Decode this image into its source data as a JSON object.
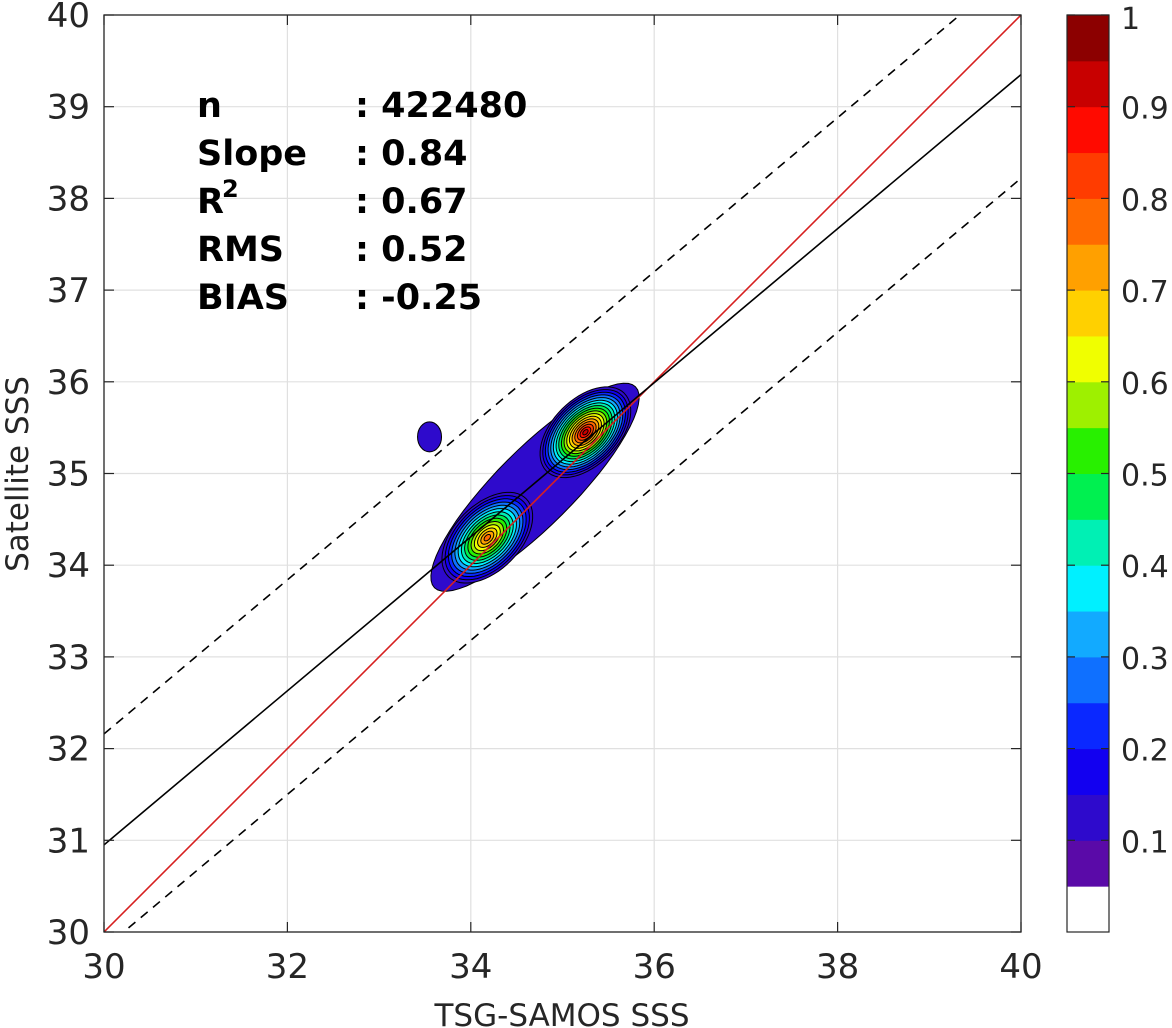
{
  "chart_data": {
    "type": "contour",
    "xlabel": "TSG-SAMOS SSS",
    "ylabel": "Satellite SSS",
    "xlim": [
      30,
      40
    ],
    "ylim": [
      30,
      40
    ],
    "xticks": [
      "30",
      "32",
      "34",
      "36",
      "38",
      "40"
    ],
    "yticks": [
      "30",
      "31",
      "32",
      "33",
      "34",
      "35",
      "36",
      "37",
      "38",
      "39",
      "40"
    ],
    "grid": true,
    "stats": [
      {
        "label": "n",
        "value": ": 422480"
      },
      {
        "label": "Slope",
        "value": ": 0.84"
      },
      {
        "label": "R",
        "sup": "2",
        "value": ": 0.67"
      },
      {
        "label": "RMS",
        "value": ": 0.52"
      },
      {
        "label": "BIAS",
        "value": ": -0.25"
      }
    ],
    "lines": {
      "one_to_one": {
        "slope": 1.0,
        "intercept": 0.0,
        "color": "#d62020",
        "style": "solid"
      },
      "regression": {
        "slope": 0.84,
        "intercept": 5.75,
        "color": "#000000",
        "style": "solid"
      },
      "upper_bound": {
        "slope": 0.84,
        "intercept": 6.96,
        "color": "#000000",
        "style": "dashed"
      },
      "lower_bound": {
        "slope": 0.84,
        "intercept": 4.62,
        "color": "#000000",
        "style": "dashed"
      }
    },
    "density_peaks": [
      {
        "x": 34.18,
        "y": 34.3,
        "level": 0.8
      },
      {
        "x": 35.25,
        "y": 35.45,
        "level": 1.0
      }
    ],
    "colorbar": {
      "ticks": [
        "0.1",
        "0.2",
        "0.3",
        "0.4",
        "0.5",
        "0.6",
        "0.7",
        "0.8",
        "0.9",
        "1"
      ],
      "range": [
        0,
        1
      ],
      "colors": [
        "#ffffff",
        "#5a0aa8",
        "#2e0acc",
        "#1200f0",
        "#0a28ff",
        "#0f70ff",
        "#12aaff",
        "#00f0ff",
        "#00f0b4",
        "#00f050",
        "#28f000",
        "#9ef000",
        "#f0ff00",
        "#ffd000",
        "#ffa000",
        "#ff6a00",
        "#ff3c00",
        "#ff0a00",
        "#c80000",
        "#8c0000"
      ]
    }
  }
}
